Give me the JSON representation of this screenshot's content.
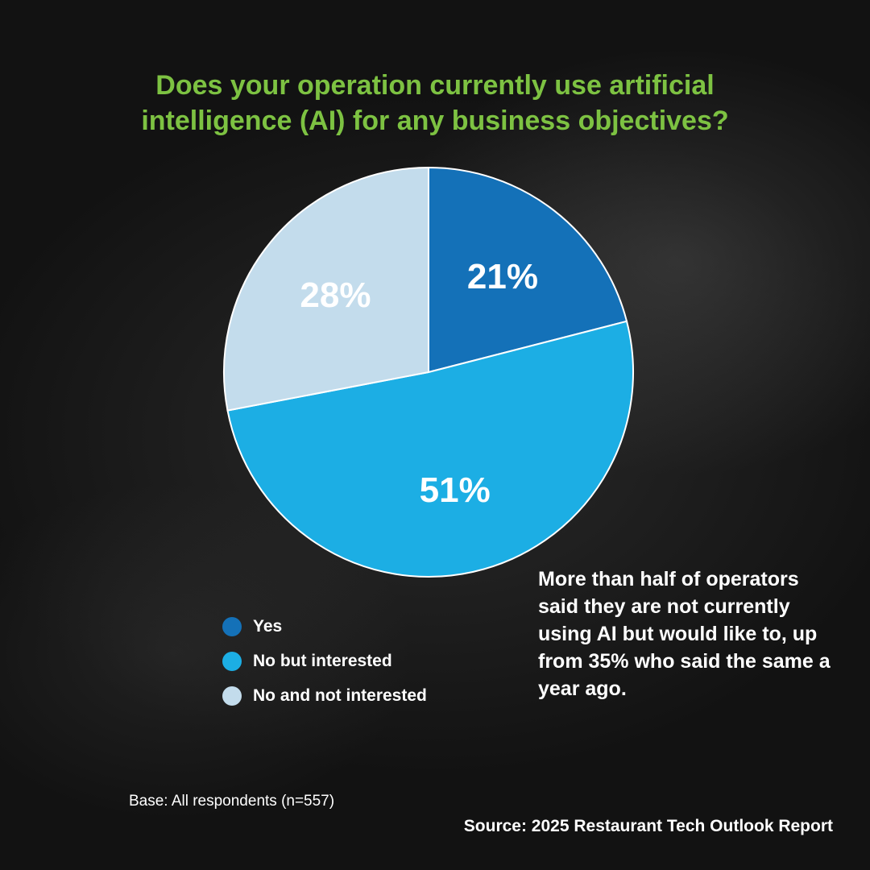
{
  "chart_data": {
    "type": "pie",
    "title_lines": [
      "Does your operation currently use artificial",
      "intelligence (AI) for any business objectives?"
    ],
    "slices": [
      {
        "label": "Yes",
        "value": 21,
        "value_label": "21%",
        "color": "#1471b8"
      },
      {
        "label": "No but interested",
        "value": 51,
        "value_label": "51%",
        "color": "#1caee4"
      },
      {
        "label": "No and not interested",
        "value": 28,
        "value_label": "28%",
        "color": "#c3dcec"
      }
    ],
    "legend_position": "bottom-left",
    "annotation": "More than half of operators said they are not currently using AI but would like to, up from 35% who said the same a year ago.",
    "footnote": "Base: All respondents (n=557)",
    "source": "Source: 2025 Restaurant Tech Outlook Report"
  },
  "colors": {
    "title": "#7dc242",
    "background": "#161616",
    "text": "#ffffff"
  }
}
